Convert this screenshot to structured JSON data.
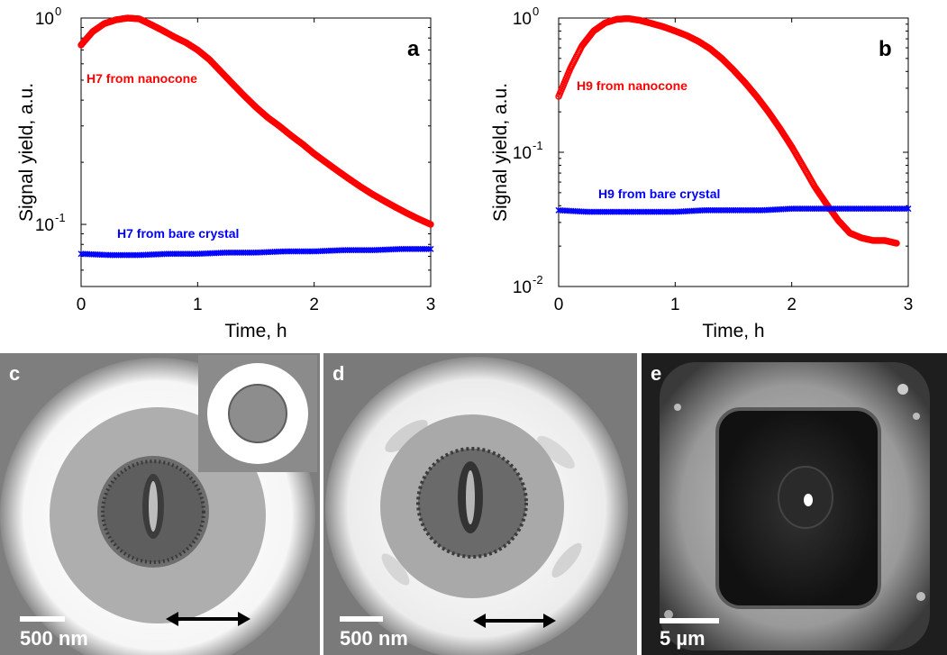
{
  "chart_data": [
    {
      "type": "scatter",
      "panel_label": "a",
      "xlabel": "Time, h",
      "ylabel": "Signal yield, a.u.",
      "xlim": [
        0,
        3
      ],
      "ylim": [
        0.05,
        1.0
      ],
      "log_y": true,
      "xticks": [
        "0",
        "1",
        "2",
        "3"
      ],
      "yticks": [
        {
          "value": 1.0,
          "base": "10",
          "exp": "0"
        },
        {
          "value": 0.1,
          "base": "10",
          "exp": "-1"
        }
      ],
      "grid": false,
      "series": [
        {
          "name": "H7 from nanocone",
          "color": "#ff0000",
          "marker": "circle",
          "x": [
            0,
            0.1,
            0.2,
            0.3,
            0.4,
            0.5,
            0.6,
            0.7,
            0.8,
            0.9,
            1.0,
            1.1,
            1.2,
            1.3,
            1.4,
            1.5,
            1.6,
            1.7,
            1.8,
            1.9,
            2.0,
            2.1,
            2.2,
            2.3,
            2.4,
            2.5,
            2.6,
            2.7,
            2.8,
            2.9,
            3.0
          ],
          "y": [
            0.74,
            0.86,
            0.94,
            0.98,
            1.0,
            0.99,
            0.93,
            0.87,
            0.81,
            0.76,
            0.7,
            0.63,
            0.55,
            0.48,
            0.42,
            0.37,
            0.33,
            0.3,
            0.27,
            0.245,
            0.22,
            0.2,
            0.182,
            0.166,
            0.152,
            0.14,
            0.13,
            0.121,
            0.113,
            0.106,
            0.1
          ]
        },
        {
          "name": "H7 from bare crystal",
          "color": "#0000ff",
          "marker": "x",
          "x": [
            0,
            0.25,
            0.5,
            0.75,
            1.0,
            1.25,
            1.5,
            1.75,
            2.0,
            2.25,
            2.5,
            2.75,
            3.0
          ],
          "y": [
            0.072,
            0.071,
            0.071,
            0.072,
            0.072,
            0.073,
            0.073,
            0.074,
            0.074,
            0.075,
            0.075,
            0.076,
            0.076
          ]
        }
      ]
    },
    {
      "type": "scatter",
      "panel_label": "b",
      "xlabel": "Time, h",
      "ylabel": "Signal yield, a.u.",
      "xlim": [
        0,
        3
      ],
      "ylim": [
        0.01,
        1.0
      ],
      "log_y": true,
      "xticks": [
        "0",
        "1",
        "2",
        "3"
      ],
      "yticks": [
        {
          "value": 1.0,
          "base": "10",
          "exp": "0"
        },
        {
          "value": 0.1,
          "base": "10",
          "exp": "-1"
        },
        {
          "value": 0.01,
          "base": "10",
          "exp": "-2"
        }
      ],
      "grid": false,
      "series": [
        {
          "name": "H9 from nanocone",
          "color": "#ff0000",
          "marker": "circle",
          "x": [
            0,
            0.1,
            0.2,
            0.3,
            0.4,
            0.5,
            0.6,
            0.7,
            0.8,
            0.9,
            1.0,
            1.1,
            1.2,
            1.3,
            1.4,
            1.5,
            1.6,
            1.7,
            1.8,
            1.9,
            2.0,
            2.1,
            2.2,
            2.3,
            2.4,
            2.5,
            2.6,
            2.7,
            2.8,
            2.9
          ],
          "y": [
            0.26,
            0.42,
            0.62,
            0.8,
            0.92,
            0.98,
            0.99,
            0.96,
            0.91,
            0.86,
            0.8,
            0.74,
            0.67,
            0.59,
            0.5,
            0.41,
            0.33,
            0.26,
            0.2,
            0.15,
            0.11,
            0.078,
            0.055,
            0.041,
            0.031,
            0.025,
            0.023,
            0.022,
            0.022,
            0.021
          ]
        },
        {
          "name": "H9 from bare crystal",
          "color": "#0000ff",
          "marker": "x",
          "x": [
            0,
            0.25,
            0.5,
            0.75,
            1.0,
            1.25,
            1.5,
            1.75,
            2.0,
            2.25,
            2.5,
            2.75,
            3.0
          ],
          "y": [
            0.037,
            0.036,
            0.036,
            0.036,
            0.036,
            0.037,
            0.037,
            0.037,
            0.038,
            0.038,
            0.038,
            0.038,
            0.038
          ]
        }
      ]
    }
  ],
  "images": [
    {
      "label": "c",
      "scale": "500 nm"
    },
    {
      "label": "d",
      "scale": "500 nm"
    },
    {
      "label": "e",
      "scale": "5 µm"
    }
  ]
}
